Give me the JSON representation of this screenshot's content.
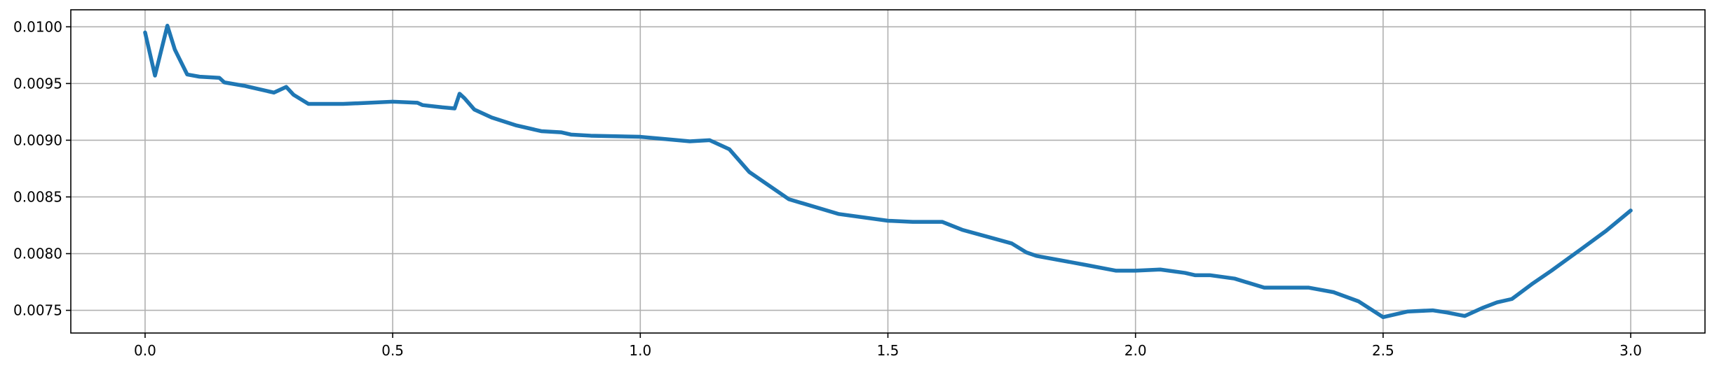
{
  "chart_data": {
    "type": "line",
    "title": "",
    "xlabel": "",
    "ylabel": "",
    "xlim": [
      -0.15,
      3.15
    ],
    "ylim": [
      0.0073,
      0.01015
    ],
    "grid": true,
    "xticks": [
      0.0,
      0.5,
      1.0,
      1.5,
      2.0,
      2.5,
      3.0
    ],
    "xtick_labels": [
      "0.0",
      "0.5",
      "1.0",
      "1.5",
      "2.0",
      "2.5",
      "3.0"
    ],
    "yticks": [
      0.0075,
      0.008,
      0.0085,
      0.009,
      0.0095,
      0.01
    ],
    "ytick_labels": [
      "0.0075",
      "0.0080",
      "0.0085",
      "0.0090",
      "0.0095",
      "0.0100"
    ],
    "series": [
      {
        "color": "#1f77b4",
        "x": [
          0.0,
          0.02,
          0.045,
          0.06,
          0.085,
          0.11,
          0.15,
          0.16,
          0.2,
          0.26,
          0.285,
          0.3,
          0.33,
          0.4,
          0.5,
          0.55,
          0.56,
          0.6,
          0.625,
          0.635,
          0.645,
          0.665,
          0.7,
          0.75,
          0.8,
          0.84,
          0.86,
          0.9,
          1.0,
          1.05,
          1.1,
          1.14,
          1.15,
          1.18,
          1.22,
          1.3,
          1.4,
          1.5,
          1.55,
          1.61,
          1.65,
          1.7,
          1.75,
          1.78,
          1.8,
          1.85,
          1.9,
          1.96,
          2.0,
          2.05,
          2.1,
          2.12,
          2.15,
          2.2,
          2.26,
          2.3,
          2.35,
          2.4,
          2.45,
          2.5,
          2.55,
          2.6,
          2.63,
          2.665,
          2.7,
          2.73,
          2.76,
          2.8,
          2.84,
          2.9,
          2.95,
          3.0
        ],
        "y": [
          0.00995,
          0.00957,
          0.01001,
          0.0098,
          0.00958,
          0.00956,
          0.00955,
          0.00951,
          0.00948,
          0.00942,
          0.00947,
          0.0094,
          0.00932,
          0.00932,
          0.00934,
          0.00933,
          0.00931,
          0.00929,
          0.00928,
          0.00941,
          0.00937,
          0.00927,
          0.0092,
          0.00913,
          0.00908,
          0.00907,
          0.00905,
          0.00904,
          0.00903,
          0.00901,
          0.00899,
          0.009,
          0.00898,
          0.00892,
          0.00872,
          0.00848,
          0.00835,
          0.00829,
          0.00828,
          0.00828,
          0.00821,
          0.00815,
          0.00809,
          0.00801,
          0.00798,
          0.00794,
          0.0079,
          0.00785,
          0.00785,
          0.00786,
          0.00783,
          0.00781,
          0.00781,
          0.00778,
          0.0077,
          0.0077,
          0.0077,
          0.00766,
          0.00758,
          0.00744,
          0.00749,
          0.0075,
          0.00748,
          0.00745,
          0.00752,
          0.00757,
          0.0076,
          0.00773,
          0.00785,
          0.00804,
          0.0082,
          0.00838
        ]
      }
    ]
  }
}
